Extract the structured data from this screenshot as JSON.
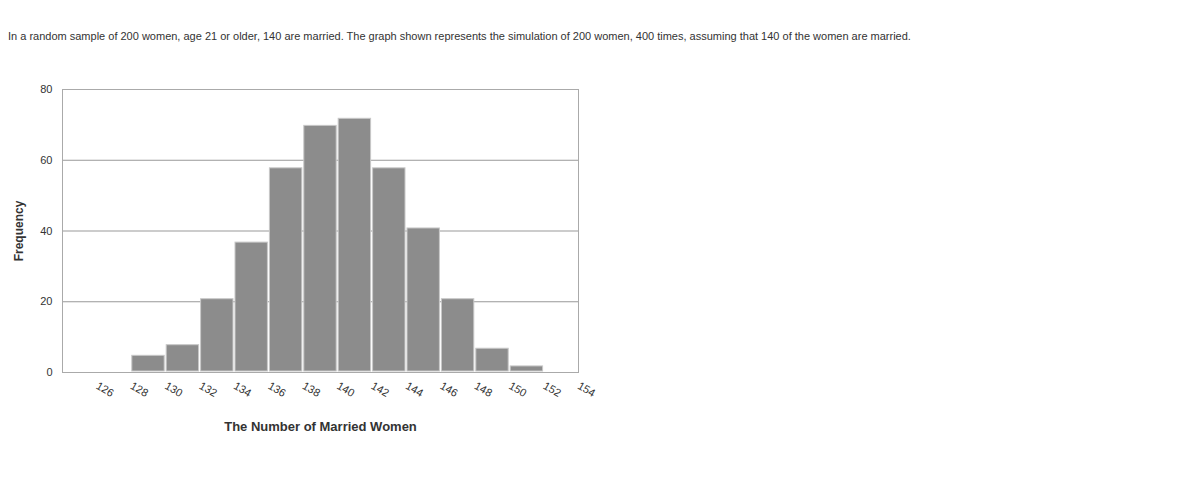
{
  "chart_data": {
    "type": "histogram",
    "title": "In a random sample of 200 women, age 21 or older, 140 are married. The graph shown represents the simulation of 200 women, 400 times, assuming that 140 of the women are married.",
    "x_label": "The Number of Married Women",
    "y_label": "Frequency",
    "bins": [
      128,
      130,
      132,
      134,
      136,
      138,
      140,
      142,
      144,
      146,
      148,
      150,
      152
    ],
    "counts": [
      5,
      8,
      21,
      37,
      58,
      70,
      72,
      58,
      41,
      21,
      7,
      2
    ],
    "color": "#8c8c8c",
    "xlim": [
      124,
      154
    ],
    "ylim": [
      0,
      80
    ],
    "xticks": [
      126,
      128,
      130,
      132,
      134,
      136,
      138,
      140,
      142,
      144,
      146,
      148,
      150,
      152,
      154
    ],
    "yticks": [
      0,
      20,
      40,
      60,
      80
    ],
    "grid": true
  }
}
